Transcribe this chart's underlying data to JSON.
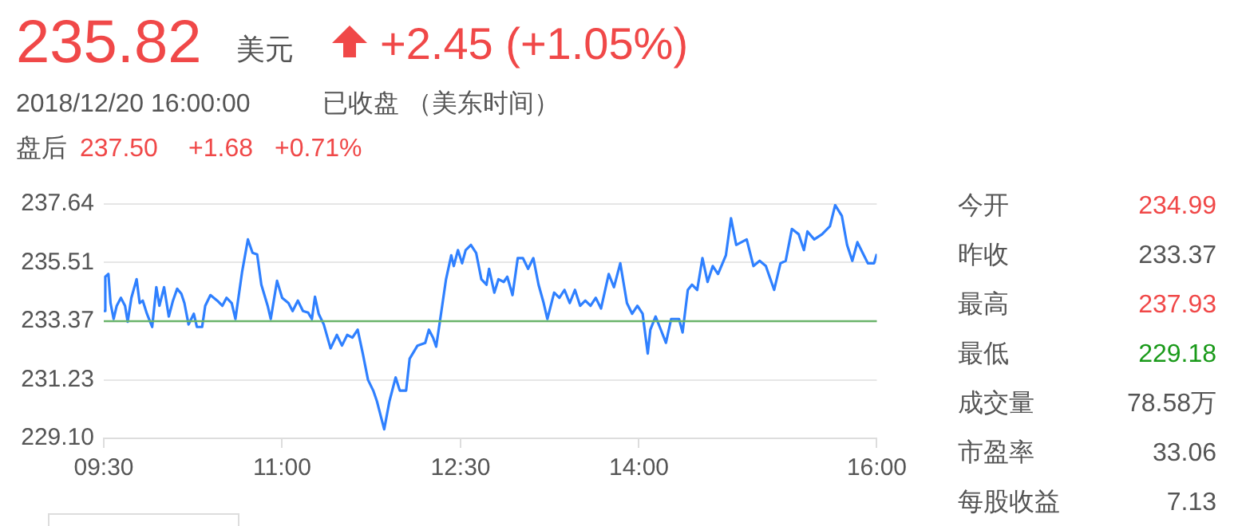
{
  "chart_data": {
    "type": "line",
    "marker": "none",
    "grid": "y",
    "legend": false,
    "annotations": [
      "235.82",
      "美元",
      "+2.45 (+1.05%)",
      "2018/12/20 16:00:00",
      "已收盘 （美东时间）",
      "盘后",
      "237.50",
      "+1.68",
      "+0.71%",
      "今开",
      "234.99",
      "昨收",
      "233.37",
      "最高",
      "237.93",
      "最低",
      "229.18",
      "成交量",
      "78.58万",
      "市盈率",
      "33.06",
      "每股收益",
      "7.13"
    ],
    "xlim": [
      9.5,
      16
    ],
    "xticks": [
      {
        "value": 9.5,
        "label": "09:30"
      },
      {
        "value": 11,
        "label": "11:00"
      },
      {
        "value": 12.5,
        "label": "12:30"
      },
      {
        "value": 14,
        "label": "14:00"
      },
      {
        "value": 16,
        "label": "16:00"
      }
    ],
    "ylim": [
      229.1,
      237.64
    ],
    "yticks": [
      {
        "value": 229.1,
        "label": "229.10"
      },
      231.23,
      233.37,
      235.51,
      237.64
    ],
    "ref_lines": [
      {
        "axis": "y",
        "value": 233.37,
        "color": "#6ab46a"
      }
    ],
    "x": [
      9.5,
      9.513,
      9.539,
      9.557,
      9.583,
      9.609,
      9.644,
      9.679,
      9.701,
      9.732,
      9.776,
      9.802,
      9.828,
      9.863,
      9.907,
      9.942,
      9.968,
      10.007,
      10.047,
      10.082,
      10.117,
      10.152,
      10.178,
      10.213,
      10.257,
      10.283,
      10.327,
      10.353,
      10.397,
      10.454,
      10.497,
      10.532,
      10.576,
      10.607,
      10.664,
      10.712,
      10.751,
      10.79,
      10.825,
      10.878,
      10.904,
      10.957,
      11.0,
      11.053,
      11.088,
      11.132,
      11.175,
      11.219,
      11.25,
      11.276,
      11.307,
      11.35,
      11.407,
      11.46,
      11.503,
      11.547,
      11.591,
      11.635,
      11.678,
      11.722,
      11.766,
      11.797,
      11.858,
      11.902,
      11.954,
      11.989,
      12.042,
      12.072,
      12.138,
      12.203,
      12.234,
      12.269,
      12.295,
      12.326,
      12.378,
      12.422,
      12.443,
      12.478,
      12.513,
      12.543,
      12.587,
      12.631,
      12.675,
      12.718,
      12.74,
      12.784,
      12.819,
      12.863,
      12.893,
      12.937,
      12.981,
      13.024,
      13.068,
      13.112,
      13.156,
      13.199,
      13.23,
      13.287,
      13.331,
      13.374,
      13.418,
      13.462,
      13.506,
      13.549,
      13.593,
      13.637,
      13.681,
      13.746,
      13.79,
      13.843,
      13.899,
      13.943,
      13.987,
      14.031,
      14.074,
      14.096,
      14.14,
      14.175,
      14.227,
      14.271,
      14.337,
      14.367,
      14.411,
      14.446,
      14.49,
      14.534,
      14.577,
      14.621,
      14.665,
      14.731,
      14.774,
      14.818,
      14.862,
      14.906,
      14.963,
      15.015,
      15.067,
      15.137,
      15.19,
      15.234,
      15.286,
      15.343,
      15.387,
      15.417,
      15.474,
      15.54,
      15.606,
      15.65,
      15.706,
      15.75,
      15.794,
      15.837,
      15.881,
      15.925,
      15.977,
      16.0
    ],
    "series": [
      {
        "color": "#2f80ff",
        "values": [
          233.74,
          234.99,
          235.09,
          234.03,
          233.45,
          233.93,
          234.22,
          233.93,
          233.35,
          234.22,
          234.9,
          234.03,
          234.12,
          233.64,
          233.16,
          234.61,
          233.93,
          234.61,
          233.54,
          234.12,
          234.55,
          234.37,
          234.03,
          233.25,
          233.64,
          233.16,
          233.16,
          233.93,
          234.32,
          234.12,
          233.93,
          234.22,
          234.03,
          233.45,
          235.19,
          236.35,
          235.86,
          235.8,
          234.7,
          233.93,
          233.45,
          234.84,
          234.22,
          234.03,
          233.74,
          234.12,
          233.74,
          233.68,
          233.45,
          234.26,
          233.64,
          233.25,
          232.38,
          232.87,
          232.48,
          232.87,
          232.77,
          233.06,
          232.19,
          231.23,
          230.84,
          230.45,
          229.43,
          230.45,
          231.32,
          230.84,
          230.84,
          232.0,
          232.48,
          232.58,
          233.06,
          232.77,
          232.44,
          233.35,
          234.9,
          235.77,
          235.38,
          235.96,
          235.48,
          235.96,
          236.15,
          235.86,
          234.9,
          234.7,
          235.28,
          234.41,
          234.9,
          234.8,
          234.99,
          234.32,
          235.67,
          235.67,
          235.28,
          235.67,
          234.7,
          234.03,
          233.45,
          234.41,
          234.22,
          234.51,
          234.03,
          234.51,
          233.93,
          234.12,
          233.93,
          234.22,
          233.83,
          235.09,
          234.61,
          235.48,
          234.03,
          233.64,
          233.93,
          233.64,
          232.19,
          233.06,
          233.54,
          233.16,
          232.58,
          233.45,
          233.45,
          232.96,
          234.51,
          234.7,
          234.51,
          235.67,
          234.8,
          235.38,
          235.09,
          235.77,
          237.12,
          236.15,
          236.25,
          236.35,
          235.38,
          235.57,
          235.38,
          234.51,
          235.48,
          235.57,
          236.73,
          236.54,
          235.96,
          236.64,
          236.35,
          236.54,
          236.83,
          237.6,
          237.21,
          236.15,
          235.57,
          236.25,
          235.86,
          235.48,
          235.48,
          235.82
        ]
      }
    ]
  }
}
